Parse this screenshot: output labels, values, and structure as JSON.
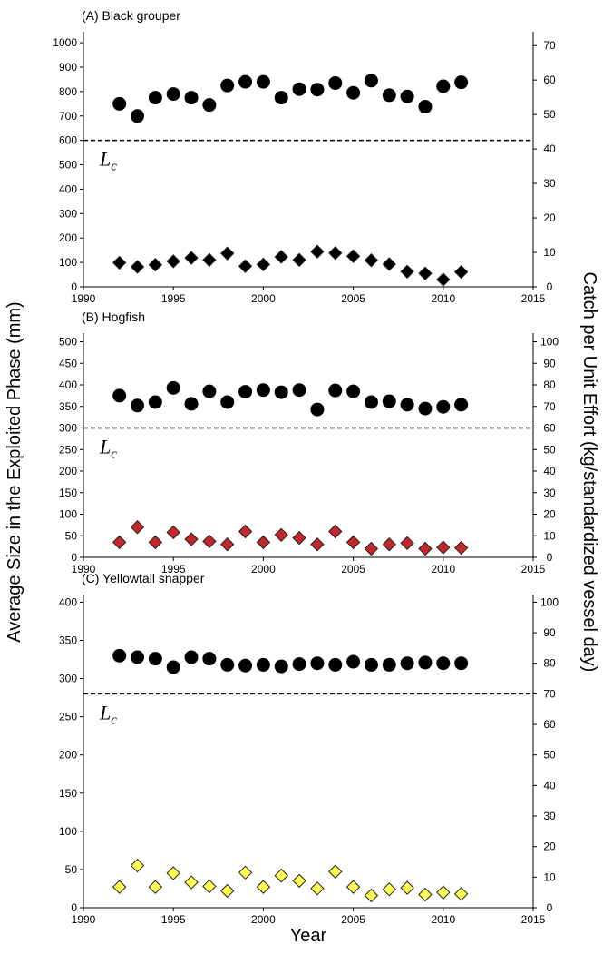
{
  "ylabel": "Average Size in the Exploited Phase (mm)",
  "y2label": "Catch per Unit Effort (kg/standardized vessel day)",
  "xlabel": "Year",
  "chart_data": [
    {
      "type": "scatter",
      "title": "(A) Black grouper",
      "x": [
        1992,
        1993,
        1994,
        1995,
        1996,
        1997,
        1998,
        1999,
        2000,
        2001,
        2002,
        2003,
        2004,
        2005,
        2006,
        2007,
        2008,
        2009,
        2010,
        2011
      ],
      "xlim": [
        1990,
        2015
      ],
      "xticks": [
        1990,
        1995,
        2000,
        2005,
        2010,
        2015
      ],
      "ylim": [
        0,
        1045
      ],
      "yticks": [
        0,
        100,
        200,
        300,
        400,
        500,
        600,
        700,
        800,
        900,
        1000
      ],
      "y2lim": [
        0,
        74
      ],
      "y2ticks": [
        0,
        10,
        20,
        30,
        40,
        50,
        60,
        70
      ],
      "reference_line": {
        "value": 600,
        "label": "L",
        "subscript": "c"
      },
      "series": [
        {
          "marker": "circle",
          "color": "#000000",
          "axis": "y",
          "values": [
            750,
            700,
            775,
            790,
            775,
            745,
            825,
            840,
            840,
            775,
            810,
            808,
            835,
            795,
            845,
            785,
            780,
            738,
            822,
            838
          ]
        },
        {
          "marker": "diamond",
          "color": "#000000",
          "axis": "y2",
          "values": [
            7.0,
            5.8,
            6.4,
            7.4,
            8.4,
            7.8,
            9.7,
            6.0,
            6.5,
            8.7,
            7.8,
            10.2,
            9.8,
            8.9,
            7.7,
            6.6,
            4.4,
            3.9,
            2.1,
            4.3
          ]
        }
      ]
    },
    {
      "type": "scatter",
      "title": "(B) Hogfish",
      "x": [
        1992,
        1993,
        1994,
        1995,
        1996,
        1997,
        1998,
        1999,
        2000,
        2001,
        2002,
        2003,
        2004,
        2005,
        2006,
        2007,
        2008,
        2009,
        2010,
        2011
      ],
      "xlim": [
        1990,
        2015
      ],
      "xticks": [
        1990,
        1995,
        2000,
        2005,
        2010,
        2015
      ],
      "ylim": [
        0,
        520
      ],
      "yticks": [
        0,
        50,
        100,
        150,
        200,
        250,
        300,
        350,
        400,
        450,
        500
      ],
      "y2lim": [
        0,
        104
      ],
      "y2ticks": [
        0,
        10,
        20,
        30,
        40,
        50,
        60,
        70,
        80,
        90,
        100
      ],
      "reference_line": {
        "value": 300,
        "label": "L",
        "subscript": "c"
      },
      "series": [
        {
          "marker": "circle",
          "color": "#000000",
          "axis": "y",
          "values": [
            375,
            352,
            360,
            393,
            356,
            385,
            360,
            384,
            388,
            383,
            388,
            343,
            387,
            385,
            360,
            362,
            354,
            345,
            349,
            354
          ]
        },
        {
          "marker": "diamond",
          "color": "#c0282b",
          "axis": "y2",
          "values": [
            7.0,
            14.0,
            7.0,
            11.6,
            8.4,
            7.4,
            6.0,
            12.0,
            7.0,
            10.4,
            9.0,
            6.0,
            12.0,
            7.0,
            4.0,
            6.0,
            6.6,
            4.0,
            4.6,
            4.4
          ]
        }
      ]
    },
    {
      "type": "scatter",
      "title": "(C) Yellowtail snapper",
      "x": [
        1992,
        1993,
        1994,
        1995,
        1996,
        1997,
        1998,
        1999,
        2000,
        2001,
        2002,
        2003,
        2004,
        2005,
        2006,
        2007,
        2008,
        2009,
        2010,
        2011
      ],
      "xlim": [
        1990,
        2015
      ],
      "xticks": [
        1990,
        1995,
        2000,
        2005,
        2010,
        2015
      ],
      "ylim": [
        0,
        410
      ],
      "yticks": [
        0,
        50,
        100,
        150,
        200,
        250,
        300,
        350,
        400
      ],
      "y2lim": [
        0,
        102.5
      ],
      "y2ticks": [
        0,
        10,
        20,
        30,
        40,
        50,
        60,
        70,
        80,
        90,
        100
      ],
      "reference_line": {
        "value": 280,
        "label": "L",
        "subscript": "c"
      },
      "series": [
        {
          "marker": "circle",
          "color": "#000000",
          "axis": "y",
          "values": [
            330,
            328,
            326,
            315,
            328,
            326,
            318,
            317,
            318,
            316,
            319,
            320,
            318,
            322,
            318,
            318,
            320,
            321,
            320,
            320
          ]
        },
        {
          "marker": "diamond",
          "color": "#ffff55",
          "axis": "y2",
          "values": [
            6.8,
            13.8,
            6.8,
            11.3,
            8.3,
            7.0,
            5.5,
            11.5,
            6.8,
            10.5,
            8.8,
            6.3,
            11.8,
            6.8,
            4.0,
            6.0,
            6.5,
            4.3,
            5.0,
            4.5
          ]
        }
      ]
    }
  ]
}
